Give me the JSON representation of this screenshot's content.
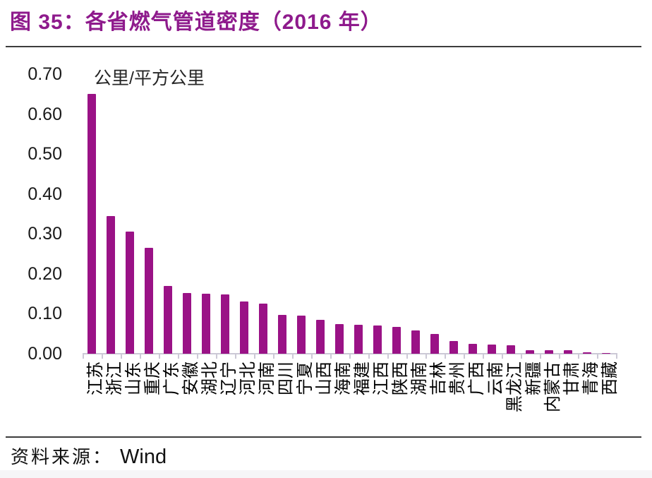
{
  "header": {
    "title": "图 35：各省燃气管道密度（2016 年）"
  },
  "footer": {
    "source_label": "资料来源：",
    "source_value": "Wind"
  },
  "chart_data": {
    "type": "bar",
    "title": "各省燃气管道密度（2016 年）",
    "unit_label": "公里/平方公里",
    "categories": [
      "江苏",
      "浙江",
      "山东",
      "重庆",
      "广东",
      "安徽",
      "湖北",
      "辽宁",
      "河北",
      "河南",
      "四川",
      "宁夏",
      "山西",
      "海南",
      "福建",
      "江西",
      "陕西",
      "湖南",
      "吉林",
      "贵州",
      "广西",
      "云南",
      "黑龙江",
      "新疆",
      "内蒙古",
      "甘肃",
      "青海",
      "西藏"
    ],
    "values": [
      0.65,
      0.345,
      0.305,
      0.265,
      0.17,
      0.152,
      0.15,
      0.148,
      0.13,
      0.126,
      0.098,
      0.095,
      0.085,
      0.075,
      0.073,
      0.07,
      0.068,
      0.058,
      0.05,
      0.031,
      0.024,
      0.023,
      0.021,
      0.009,
      0.009,
      0.009,
      0.004,
      0.001
    ],
    "xlabel": "",
    "ylabel": "公里/平方公里",
    "ylim": [
      0,
      0.7
    ],
    "ytick_labels": [
      "0.00",
      "0.10",
      "0.20",
      "0.30",
      "0.40",
      "0.50",
      "0.60",
      "0.70"
    ],
    "grid": false,
    "legend": "none",
    "bar_color": "#9A1286",
    "axis_color": "#CCC9D6",
    "title_color": "#8E1A8C",
    "label_color": "#1A1A1A"
  }
}
